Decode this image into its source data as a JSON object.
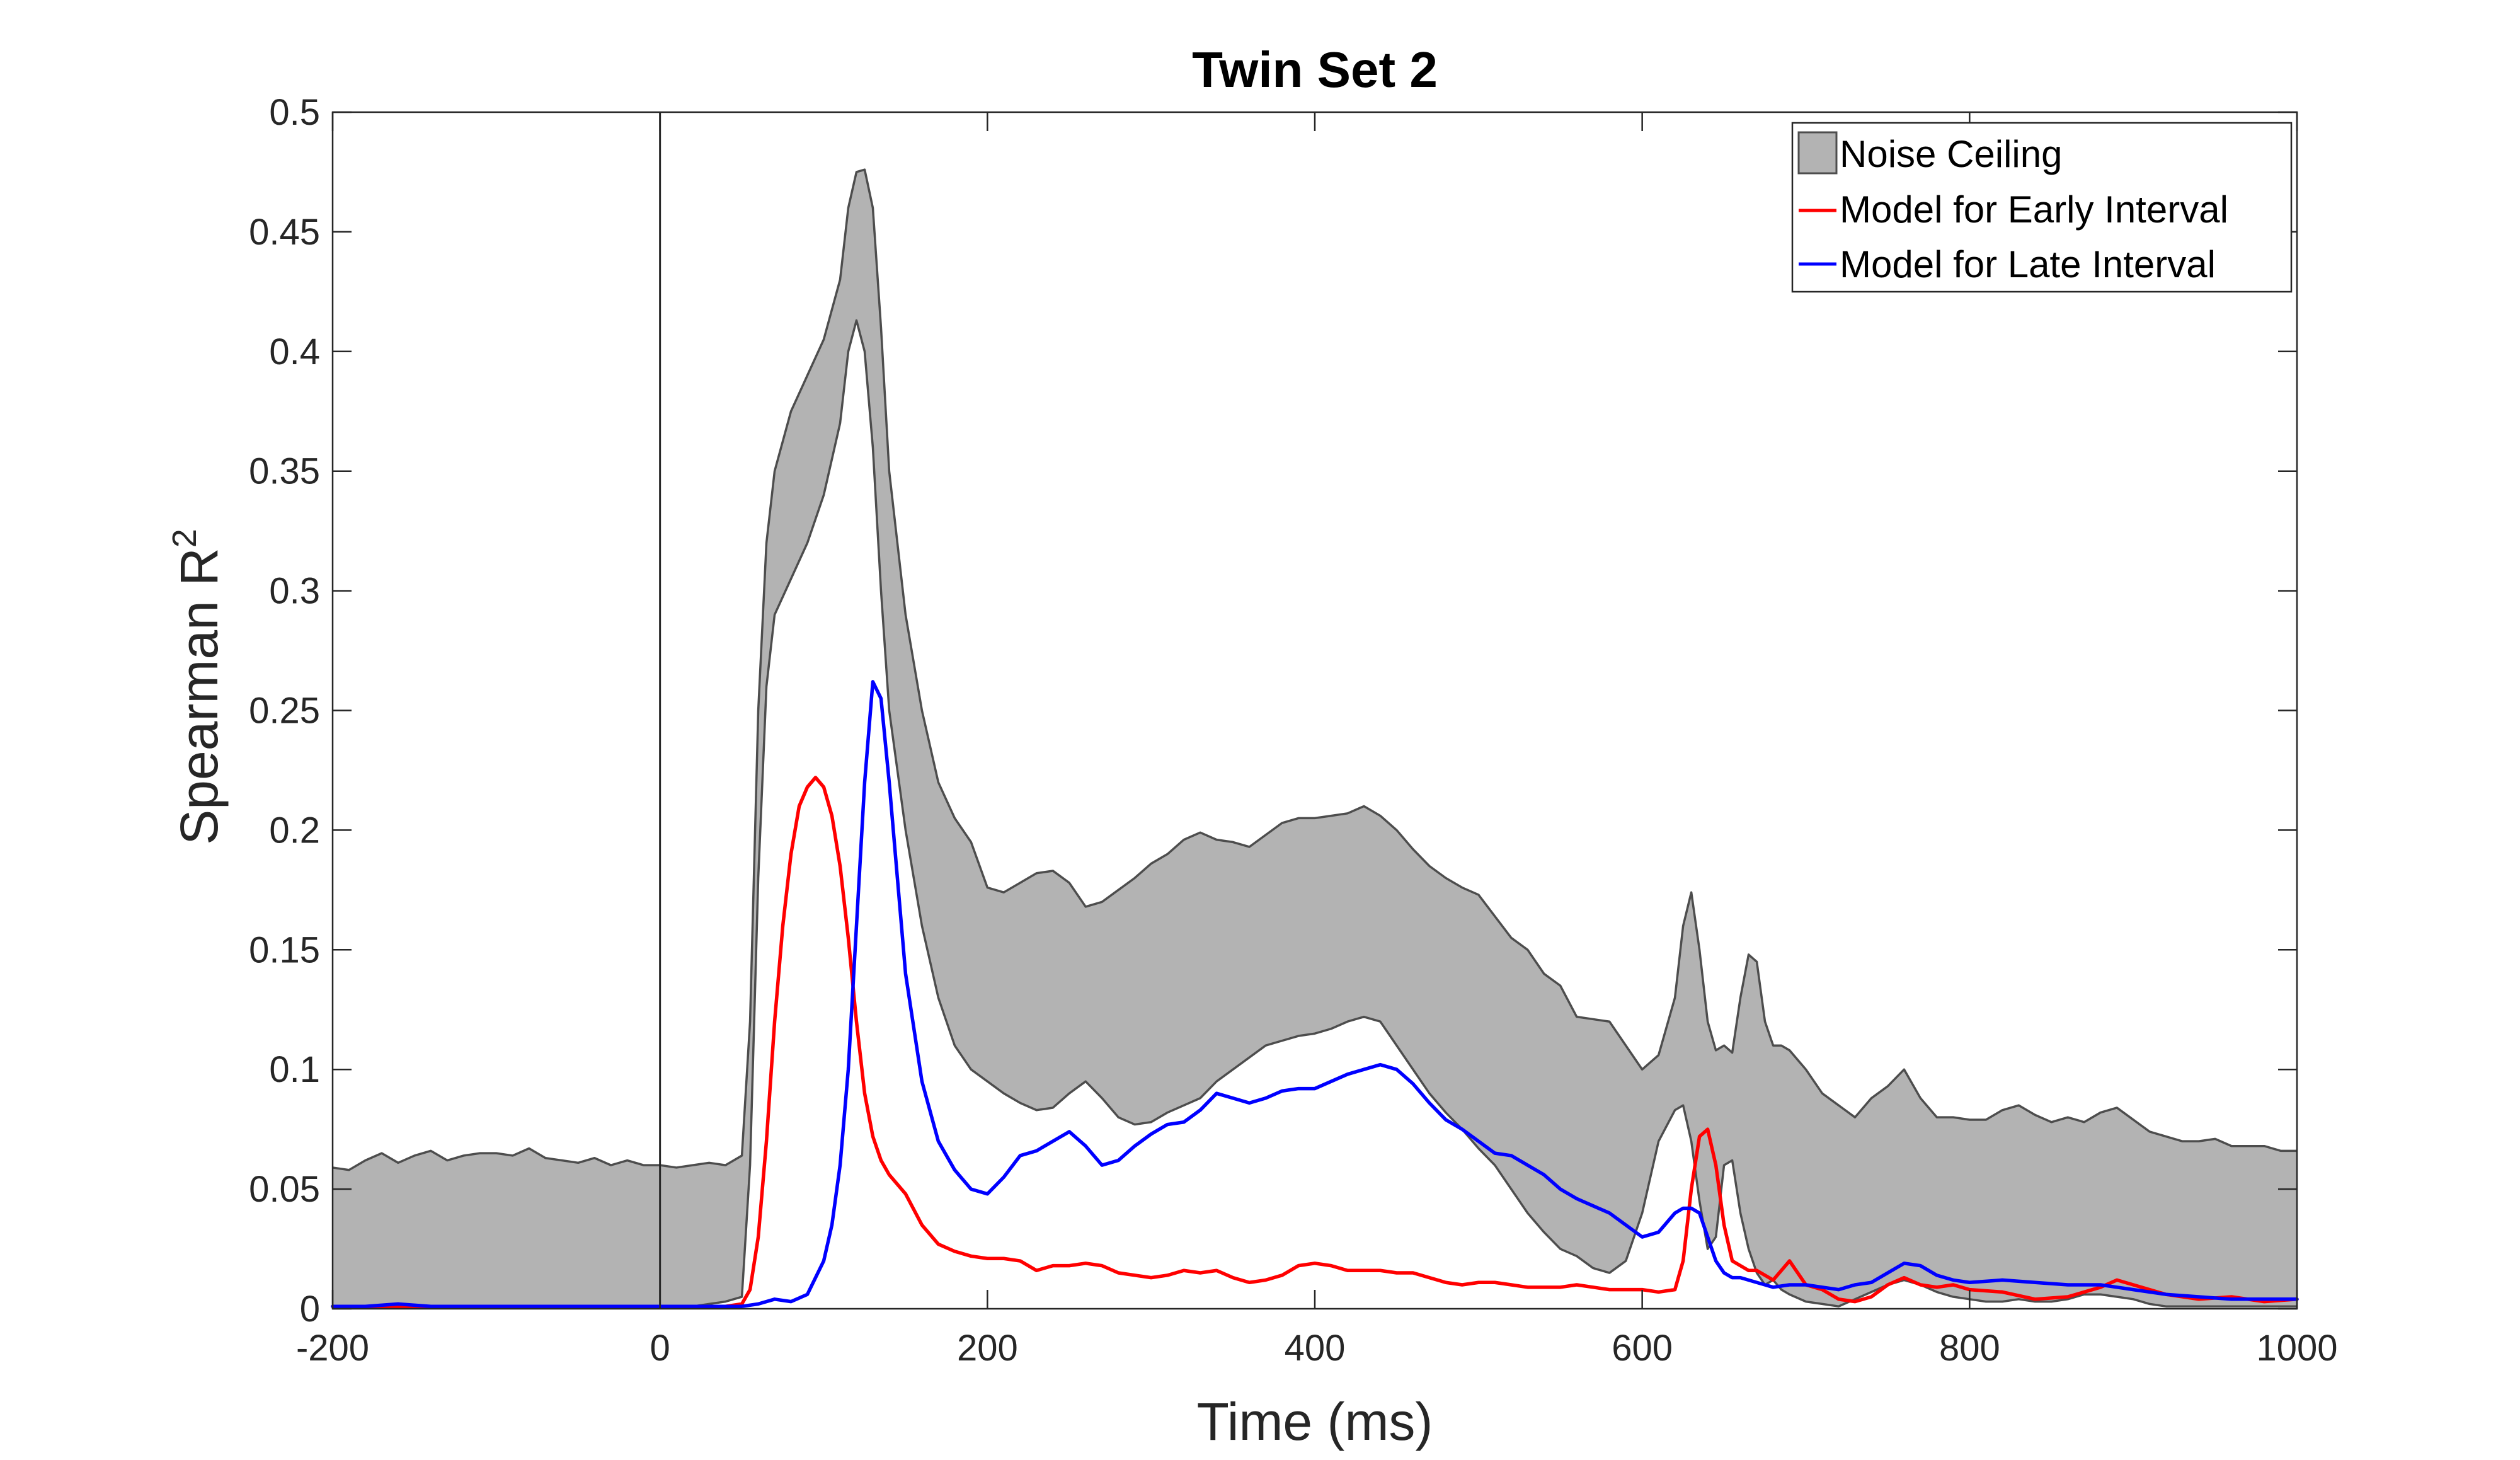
{
  "chart_data": {
    "type": "line",
    "title": "Twin Set 2",
    "xlabel": "Time (ms)",
    "ylabel": "Spearman R",
    "ylabel_superscript": "2",
    "xlim": [
      -200,
      1000
    ],
    "ylim": [
      0,
      0.5
    ],
    "x_ticks": [
      -200,
      0,
      200,
      400,
      600,
      800,
      1000
    ],
    "x_tick_labels": [
      "-200",
      "0",
      "200",
      "400",
      "600",
      "800",
      "1000"
    ],
    "y_ticks": [
      0,
      0.05,
      0.1,
      0.15,
      0.2,
      0.25,
      0.3,
      0.35,
      0.4,
      0.45,
      0.5
    ],
    "y_tick_labels": [
      "0",
      "0.05",
      "0.1",
      "0.15",
      "0.2",
      "0.25",
      "0.3",
      "0.35",
      "0.4",
      "0.45",
      "0.5"
    ],
    "grid": false,
    "legend_position": "top-right",
    "stimulus_onset_line": 0,
    "colors": {
      "noise_ceiling_fill": "#b3b3b3",
      "noise_ceiling_edge": "#4d4d4d",
      "early": "#ff0000",
      "late": "#0000ff",
      "axis": "#262626",
      "onset": "#262626"
    },
    "noise_ceiling": {
      "name": "Noise Ceiling",
      "x": [
        -200,
        -190,
        -180,
        -170,
        -160,
        -150,
        -140,
        -130,
        -120,
        -110,
        -100,
        -90,
        -80,
        -70,
        -60,
        -50,
        -40,
        -30,
        -20,
        -10,
        0,
        10,
        20,
        30,
        40,
        50,
        55,
        60,
        65,
        70,
        80,
        90,
        100,
        110,
        115,
        120,
        125,
        130,
        135,
        140,
        150,
        160,
        170,
        180,
        190,
        200,
        210,
        220,
        230,
        240,
        250,
        260,
        270,
        280,
        290,
        300,
        310,
        320,
        330,
        340,
        350,
        360,
        370,
        380,
        390,
        400,
        410,
        420,
        430,
        440,
        450,
        460,
        470,
        480,
        490,
        500,
        510,
        520,
        530,
        540,
        550,
        560,
        570,
        580,
        590,
        600,
        610,
        620,
        625,
        630,
        635,
        640,
        645,
        650,
        655,
        660,
        665,
        670,
        675,
        680,
        685,
        690,
        700,
        710,
        720,
        730,
        740,
        750,
        760,
        770,
        780,
        790,
        800,
        810,
        820,
        830,
        840,
        850,
        860,
        870,
        880,
        890,
        900,
        910,
        920,
        930,
        940,
        950,
        960,
        970,
        980,
        990,
        1000
      ],
      "upper": [
        0.059,
        0.058,
        0.062,
        0.065,
        0.061,
        0.064,
        0.066,
        0.062,
        0.064,
        0.065,
        0.065,
        0.064,
        0.067,
        0.063,
        0.062,
        0.061,
        0.063,
        0.06,
        0.062,
        0.06,
        0.06,
        0.059,
        0.06,
        0.061,
        0.06,
        0.064,
        0.12,
        0.25,
        0.32,
        0.35,
        0.375,
        0.39,
        0.405,
        0.43,
        0.46,
        0.475,
        0.476,
        0.46,
        0.41,
        0.35,
        0.29,
        0.25,
        0.22,
        0.205,
        0.195,
        0.176,
        0.174,
        0.178,
        0.182,
        0.183,
        0.178,
        0.168,
        0.17,
        0.175,
        0.18,
        0.186,
        0.19,
        0.196,
        0.199,
        0.196,
        0.195,
        0.193,
        0.198,
        0.203,
        0.205,
        0.205,
        0.206,
        0.207,
        0.21,
        0.206,
        0.2,
        0.192,
        0.185,
        0.18,
        0.176,
        0.173,
        0.164,
        0.155,
        0.15,
        0.14,
        0.135,
        0.122,
        0.121,
        0.12,
        0.11,
        0.1,
        0.106,
        0.13,
        0.16,
        0.174,
        0.15,
        0.12,
        0.108,
        0.11,
        0.107,
        0.13,
        0.148,
        0.145,
        0.12,
        0.11,
        0.11,
        0.108,
        0.1,
        0.09,
        0.085,
        0.08,
        0.088,
        0.093,
        0.1,
        0.088,
        0.08,
        0.08,
        0.079,
        0.079,
        0.083,
        0.085,
        0.081,
        0.078,
        0.08,
        0.078,
        0.082,
        0.084,
        0.079,
        0.074,
        0.072,
        0.07,
        0.07,
        0.071,
        0.068,
        0.068,
        0.068,
        0.066,
        0.066
      ],
      "lower": [
        0.001,
        0.001,
        0.001,
        0.001,
        0.001,
        0.001,
        0.001,
        0.001,
        0.001,
        0.001,
        0.001,
        0.001,
        0.001,
        0.001,
        0.001,
        0.001,
        0.001,
        0.001,
        0.001,
        0.001,
        0.001,
        0.001,
        0.001,
        0.002,
        0.003,
        0.005,
        0.06,
        0.18,
        0.26,
        0.29,
        0.305,
        0.32,
        0.34,
        0.37,
        0.4,
        0.413,
        0.4,
        0.36,
        0.3,
        0.25,
        0.2,
        0.16,
        0.13,
        0.11,
        0.1,
        0.095,
        0.09,
        0.086,
        0.083,
        0.084,
        0.09,
        0.095,
        0.088,
        0.08,
        0.077,
        0.078,
        0.082,
        0.085,
        0.088,
        0.095,
        0.1,
        0.105,
        0.11,
        0.112,
        0.114,
        0.115,
        0.117,
        0.12,
        0.122,
        0.12,
        0.11,
        0.1,
        0.09,
        0.082,
        0.075,
        0.067,
        0.06,
        0.05,
        0.04,
        0.032,
        0.025,
        0.022,
        0.017,
        0.015,
        0.02,
        0.04,
        0.07,
        0.083,
        0.085,
        0.07,
        0.045,
        0.025,
        0.03,
        0.06,
        0.062,
        0.04,
        0.025,
        0.015,
        0.01,
        0.012,
        0.008,
        0.006,
        0.003,
        0.002,
        0.001,
        0.004,
        0.007,
        0.01,
        0.012,
        0.01,
        0.007,
        0.005,
        0.004,
        0.003,
        0.003,
        0.004,
        0.003,
        0.003,
        0.004,
        0.006,
        0.006,
        0.005,
        0.004,
        0.002,
        0.001,
        0.001,
        0.001,
        0.001,
        0.001,
        0.001,
        0.001,
        0.001,
        0.001
      ]
    },
    "series": [
      {
        "name": "Model for Early Interval",
        "color": "#ff0000",
        "x": [
          -200,
          -150,
          -100,
          -50,
          0,
          20,
          40,
          50,
          55,
          60,
          65,
          70,
          75,
          80,
          85,
          90,
          95,
          100,
          105,
          110,
          115,
          120,
          125,
          130,
          135,
          140,
          150,
          160,
          170,
          180,
          190,
          200,
          210,
          220,
          230,
          240,
          250,
          260,
          270,
          280,
          290,
          300,
          310,
          320,
          330,
          340,
          350,
          360,
          370,
          380,
          390,
          400,
          410,
          420,
          430,
          440,
          450,
          460,
          470,
          480,
          490,
          500,
          510,
          520,
          530,
          540,
          550,
          560,
          570,
          580,
          590,
          600,
          610,
          620,
          625,
          630,
          635,
          640,
          645,
          650,
          655,
          660,
          665,
          670,
          680,
          690,
          700,
          710,
          720,
          730,
          740,
          750,
          760,
          770,
          780,
          790,
          800,
          820,
          840,
          860,
          880,
          890,
          900,
          920,
          940,
          960,
          980,
          1000
        ],
        "values": [
          0.001,
          0.001,
          0.001,
          0.001,
          0.001,
          0.001,
          0.001,
          0.002,
          0.008,
          0.03,
          0.07,
          0.12,
          0.16,
          0.19,
          0.21,
          0.218,
          0.222,
          0.218,
          0.206,
          0.185,
          0.155,
          0.12,
          0.09,
          0.072,
          0.062,
          0.056,
          0.048,
          0.035,
          0.027,
          0.024,
          0.022,
          0.021,
          0.021,
          0.02,
          0.016,
          0.018,
          0.018,
          0.019,
          0.018,
          0.015,
          0.014,
          0.013,
          0.014,
          0.016,
          0.015,
          0.016,
          0.013,
          0.011,
          0.012,
          0.014,
          0.018,
          0.019,
          0.018,
          0.016,
          0.016,
          0.016,
          0.015,
          0.015,
          0.013,
          0.011,
          0.01,
          0.011,
          0.011,
          0.01,
          0.009,
          0.009,
          0.009,
          0.01,
          0.009,
          0.008,
          0.008,
          0.008,
          0.007,
          0.008,
          0.02,
          0.05,
          0.072,
          0.075,
          0.06,
          0.035,
          0.02,
          0.018,
          0.016,
          0.016,
          0.012,
          0.02,
          0.01,
          0.008,
          0.004,
          0.003,
          0.005,
          0.01,
          0.013,
          0.01,
          0.009,
          0.01,
          0.008,
          0.007,
          0.004,
          0.005,
          0.009,
          0.012,
          0.01,
          0.006,
          0.004,
          0.005,
          0.003,
          0.004
        ]
      },
      {
        "name": "Model for Late Interval",
        "color": "#0000ff",
        "x": [
          -200,
          -180,
          -160,
          -140,
          -120,
          -100,
          -80,
          -60,
          -40,
          -20,
          0,
          20,
          40,
          50,
          60,
          70,
          80,
          90,
          100,
          105,
          110,
          115,
          120,
          125,
          130,
          135,
          140,
          145,
          150,
          160,
          170,
          180,
          190,
          200,
          210,
          220,
          230,
          240,
          250,
          260,
          270,
          280,
          290,
          300,
          310,
          320,
          330,
          340,
          350,
          360,
          370,
          380,
          390,
          400,
          410,
          420,
          430,
          440,
          450,
          460,
          470,
          480,
          490,
          500,
          510,
          520,
          530,
          540,
          550,
          560,
          570,
          580,
          590,
          600,
          610,
          620,
          625,
          630,
          635,
          640,
          645,
          650,
          655,
          660,
          670,
          680,
          690,
          700,
          710,
          720,
          730,
          740,
          750,
          760,
          770,
          780,
          790,
          800,
          820,
          840,
          860,
          880,
          890,
          900,
          920,
          940,
          960,
          980,
          1000
        ],
        "values": [
          0.001,
          0.001,
          0.002,
          0.001,
          0.001,
          0.001,
          0.001,
          0.001,
          0.001,
          0.001,
          0.001,
          0.001,
          0.001,
          0.001,
          0.002,
          0.004,
          0.003,
          0.006,
          0.02,
          0.035,
          0.06,
          0.1,
          0.16,
          0.22,
          0.262,
          0.255,
          0.22,
          0.18,
          0.14,
          0.095,
          0.07,
          0.058,
          0.05,
          0.048,
          0.055,
          0.064,
          0.066,
          0.07,
          0.074,
          0.068,
          0.06,
          0.062,
          0.068,
          0.073,
          0.077,
          0.078,
          0.083,
          0.09,
          0.088,
          0.086,
          0.088,
          0.091,
          0.092,
          0.092,
          0.095,
          0.098,
          0.1,
          0.102,
          0.1,
          0.094,
          0.086,
          0.079,
          0.075,
          0.07,
          0.065,
          0.064,
          0.06,
          0.056,
          0.05,
          0.046,
          0.043,
          0.04,
          0.035,
          0.03,
          0.032,
          0.04,
          0.042,
          0.042,
          0.04,
          0.03,
          0.02,
          0.015,
          0.013,
          0.013,
          0.011,
          0.009,
          0.01,
          0.01,
          0.009,
          0.008,
          0.01,
          0.011,
          0.015,
          0.019,
          0.018,
          0.014,
          0.012,
          0.011,
          0.012,
          0.011,
          0.01,
          0.01,
          0.009,
          0.008,
          0.006,
          0.005,
          0.004,
          0.004,
          0.004
        ]
      }
    ]
  }
}
